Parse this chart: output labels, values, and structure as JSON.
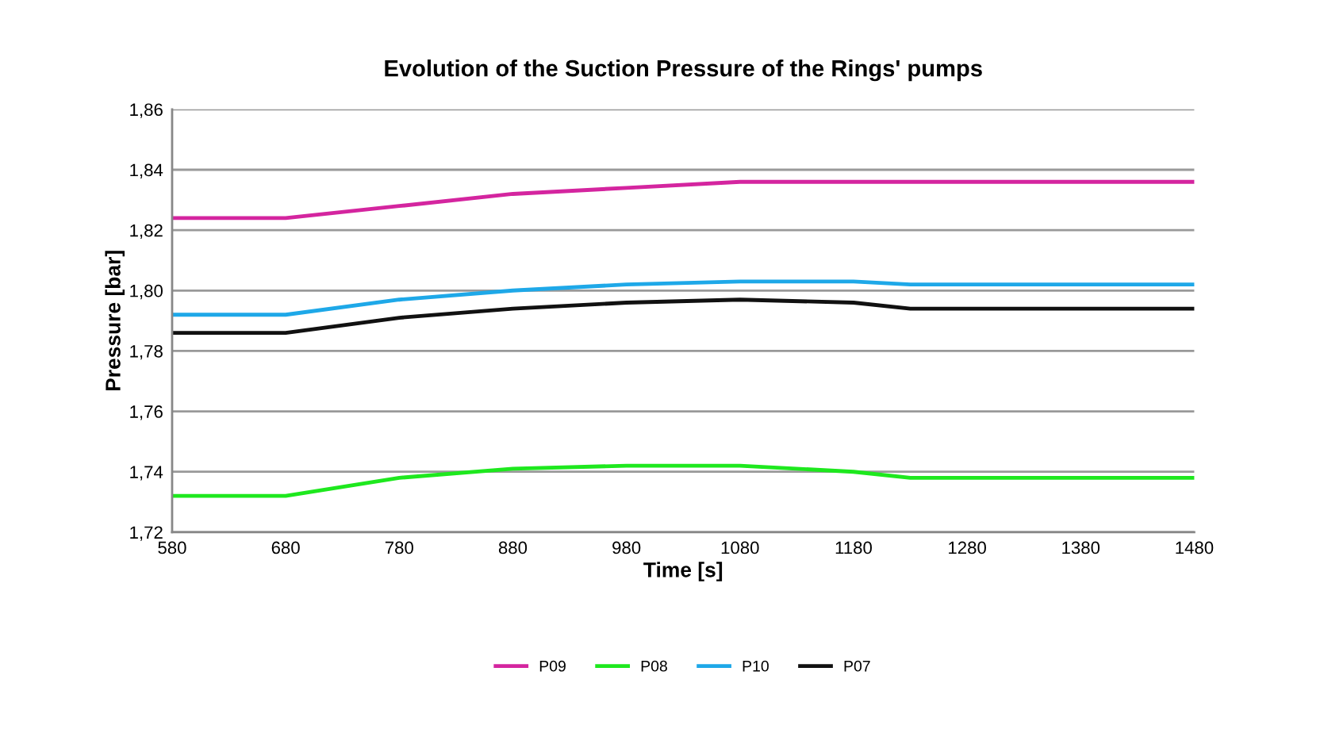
{
  "chart_data": {
    "type": "line",
    "title": "Evolution of the Suction Pressure of the Rings' pumps",
    "xlabel": "Time [s]",
    "ylabel": "Pressure [bar]",
    "xlim": [
      580,
      1480
    ],
    "xticks": [
      580,
      680,
      780,
      880,
      980,
      1080,
      1180,
      1280,
      1380,
      1480
    ],
    "ylim": [
      1.72,
      1.86
    ],
    "yticks": [
      {
        "value": 1.72,
        "label": "1,72"
      },
      {
        "value": 1.74,
        "label": "1,74"
      },
      {
        "value": 1.76,
        "label": "1,76"
      },
      {
        "value": 1.78,
        "label": "1,78"
      },
      {
        "value": 1.8,
        "label": "1,80"
      },
      {
        "value": 1.82,
        "label": "1,82"
      },
      {
        "value": 1.84,
        "label": "1,84"
      },
      {
        "value": 1.86,
        "label": "1,86"
      }
    ],
    "x": [
      580,
      680,
      780,
      880,
      980,
      1080,
      1180,
      1230,
      1280,
      1380,
      1480
    ],
    "grid": "y",
    "legend": "bottom",
    "marker": "none",
    "line_style": "solid",
    "series": [
      {
        "name": "P09",
        "color": "#d4259f",
        "values": [
          1.824,
          1.824,
          1.828,
          1.832,
          1.834,
          1.836,
          1.836,
          1.836,
          1.836,
          1.836,
          1.836
        ]
      },
      {
        "name": "P08",
        "color": "#1ee81e",
        "values": [
          1.732,
          1.732,
          1.738,
          1.741,
          1.742,
          1.742,
          1.74,
          1.738,
          1.738,
          1.738,
          1.738
        ]
      },
      {
        "name": "P10",
        "color": "#1ea8e8",
        "values": [
          1.792,
          1.792,
          1.797,
          1.8,
          1.802,
          1.803,
          1.803,
          1.802,
          1.802,
          1.802,
          1.802
        ]
      },
      {
        "name": "P07",
        "color": "#111111",
        "values": [
          1.786,
          1.786,
          1.791,
          1.794,
          1.796,
          1.797,
          1.796,
          1.794,
          1.794,
          1.794,
          1.794
        ]
      }
    ]
  }
}
